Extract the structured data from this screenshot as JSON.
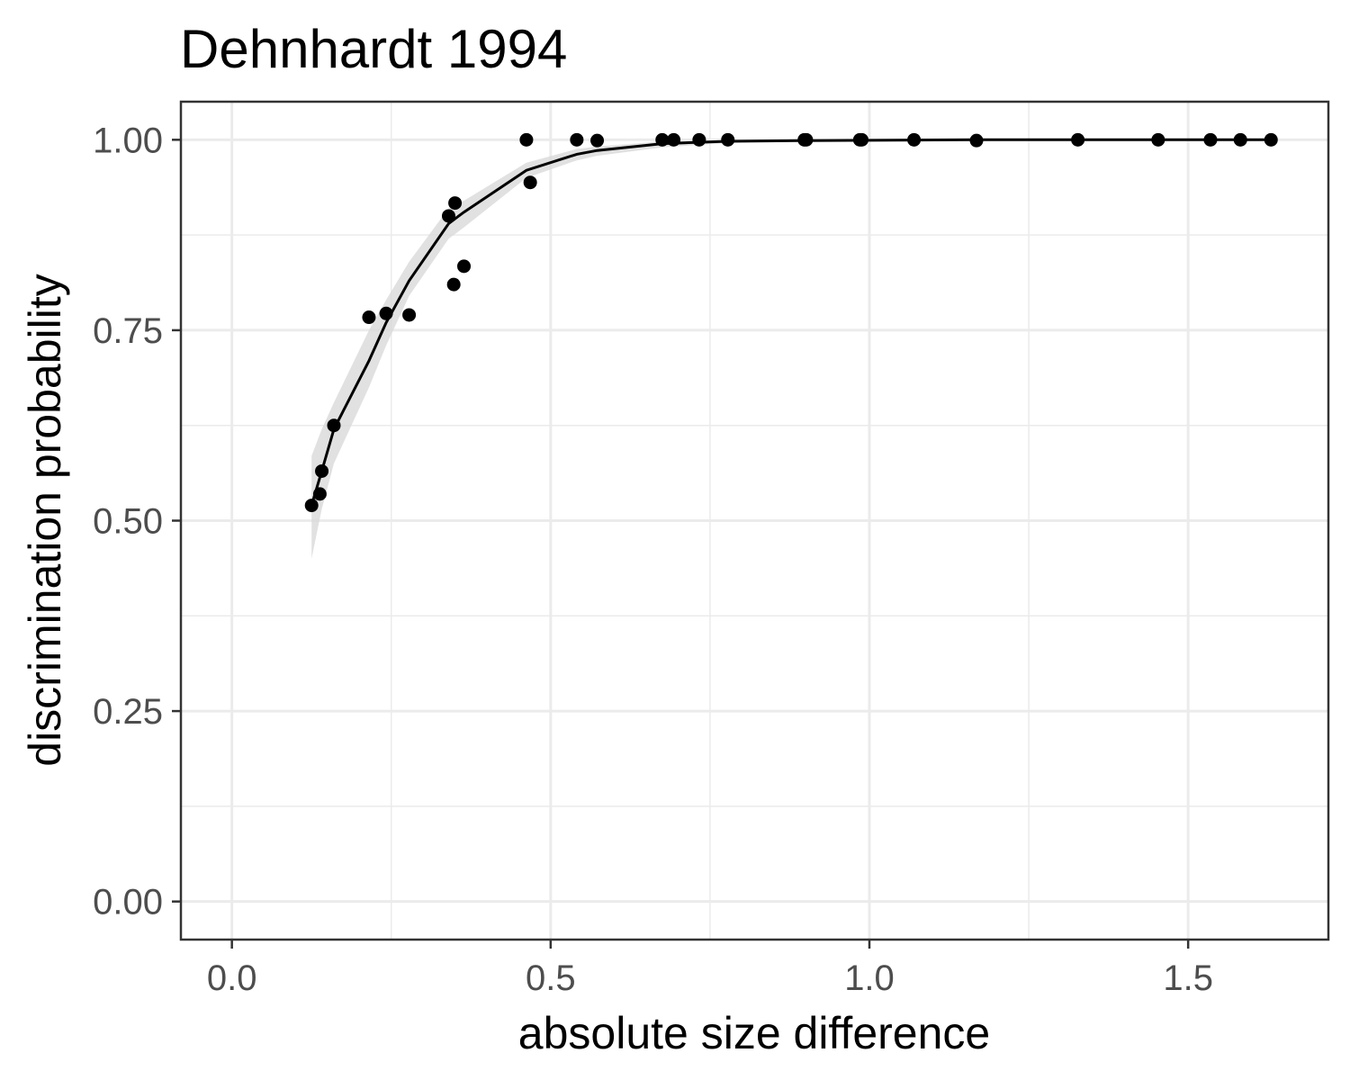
{
  "chart_data": {
    "type": "scatter",
    "title": "Dehnhardt 1994",
    "xlabel": "absolute size difference",
    "ylabel": "discrimination probability",
    "xlim": [
      -0.08,
      1.72
    ],
    "ylim": [
      -0.05,
      1.05
    ],
    "x_ticks": [
      0.0,
      0.5,
      1.0,
      1.5
    ],
    "x_tick_labels": [
      "0.0",
      "0.5",
      "1.0",
      "1.5"
    ],
    "y_ticks": [
      0.0,
      0.25,
      0.5,
      0.75,
      1.0
    ],
    "y_tick_labels": [
      "0.00",
      "0.25",
      "0.50",
      "0.75",
      "1.00"
    ],
    "grid": true,
    "legend": "none",
    "colors": {
      "points": "#000000",
      "fit_line": "#000000",
      "ribbon": "#d9d9d9",
      "grid": "#ebebeb",
      "panel_border": "#333333"
    },
    "points": [
      {
        "x": 0.125,
        "y": 0.52
      },
      {
        "x": 0.138,
        "y": 0.535
      },
      {
        "x": 0.141,
        "y": 0.565
      },
      {
        "x": 0.16,
        "y": 0.625
      },
      {
        "x": 0.215,
        "y": 0.767
      },
      {
        "x": 0.242,
        "y": 0.772
      },
      {
        "x": 0.278,
        "y": 0.77
      },
      {
        "x": 0.34,
        "y": 0.9
      },
      {
        "x": 0.348,
        "y": 0.81
      },
      {
        "x": 0.35,
        "y": 0.917
      },
      {
        "x": 0.364,
        "y": 0.834
      },
      {
        "x": 0.462,
        "y": 1.0
      },
      {
        "x": 0.468,
        "y": 0.944
      },
      {
        "x": 0.541,
        "y": 1.0
      },
      {
        "x": 0.573,
        "y": 0.999
      },
      {
        "x": 0.675,
        "y": 1.0
      },
      {
        "x": 0.693,
        "y": 1.0
      },
      {
        "x": 0.733,
        "y": 1.0
      },
      {
        "x": 0.778,
        "y": 1.0
      },
      {
        "x": 0.898,
        "y": 1.0
      },
      {
        "x": 0.901,
        "y": 1.0
      },
      {
        "x": 0.985,
        "y": 1.0
      },
      {
        "x": 0.988,
        "y": 1.0
      },
      {
        "x": 1.07,
        "y": 1.0
      },
      {
        "x": 1.168,
        "y": 0.999
      },
      {
        "x": 1.327,
        "y": 1.0
      },
      {
        "x": 1.453,
        "y": 1.0
      },
      {
        "x": 1.535,
        "y": 1.0
      },
      {
        "x": 1.582,
        "y": 1.0
      },
      {
        "x": 1.63,
        "y": 1.0
      }
    ],
    "fit": [
      {
        "x": 0.125,
        "y": 0.52,
        "lower": 0.45,
        "upper": 0.585
      },
      {
        "x": 0.141,
        "y": 0.565,
        "lower": 0.515,
        "upper": 0.62
      },
      {
        "x": 0.16,
        "y": 0.62,
        "lower": 0.575,
        "upper": 0.655
      },
      {
        "x": 0.215,
        "y": 0.71,
        "lower": 0.675,
        "upper": 0.75
      },
      {
        "x": 0.242,
        "y": 0.76,
        "lower": 0.73,
        "upper": 0.79
      },
      {
        "x": 0.278,
        "y": 0.815,
        "lower": 0.795,
        "upper": 0.84
      },
      {
        "x": 0.34,
        "y": 0.89,
        "lower": 0.87,
        "upper": 0.91
      },
      {
        "x": 0.364,
        "y": 0.905,
        "lower": 0.885,
        "upper": 0.92
      },
      {
        "x": 0.462,
        "y": 0.96,
        "lower": 0.95,
        "upper": 0.97
      },
      {
        "x": 0.541,
        "y": 0.981,
        "lower": 0.973,
        "upper": 0.988
      },
      {
        "x": 0.573,
        "y": 0.986,
        "lower": 0.979,
        "upper": 0.991
      },
      {
        "x": 0.675,
        "y": 0.995,
        "lower": 0.99,
        "upper": 0.998
      },
      {
        "x": 0.778,
        "y": 0.998,
        "lower": 0.996,
        "upper": 0.999
      },
      {
        "x": 0.898,
        "y": 0.999,
        "lower": 0.999,
        "upper": 1.0
      },
      {
        "x": 1.168,
        "y": 1.0,
        "lower": 1.0,
        "upper": 1.0
      },
      {
        "x": 1.63,
        "y": 1.0,
        "lower": 1.0,
        "upper": 1.0
      }
    ]
  }
}
